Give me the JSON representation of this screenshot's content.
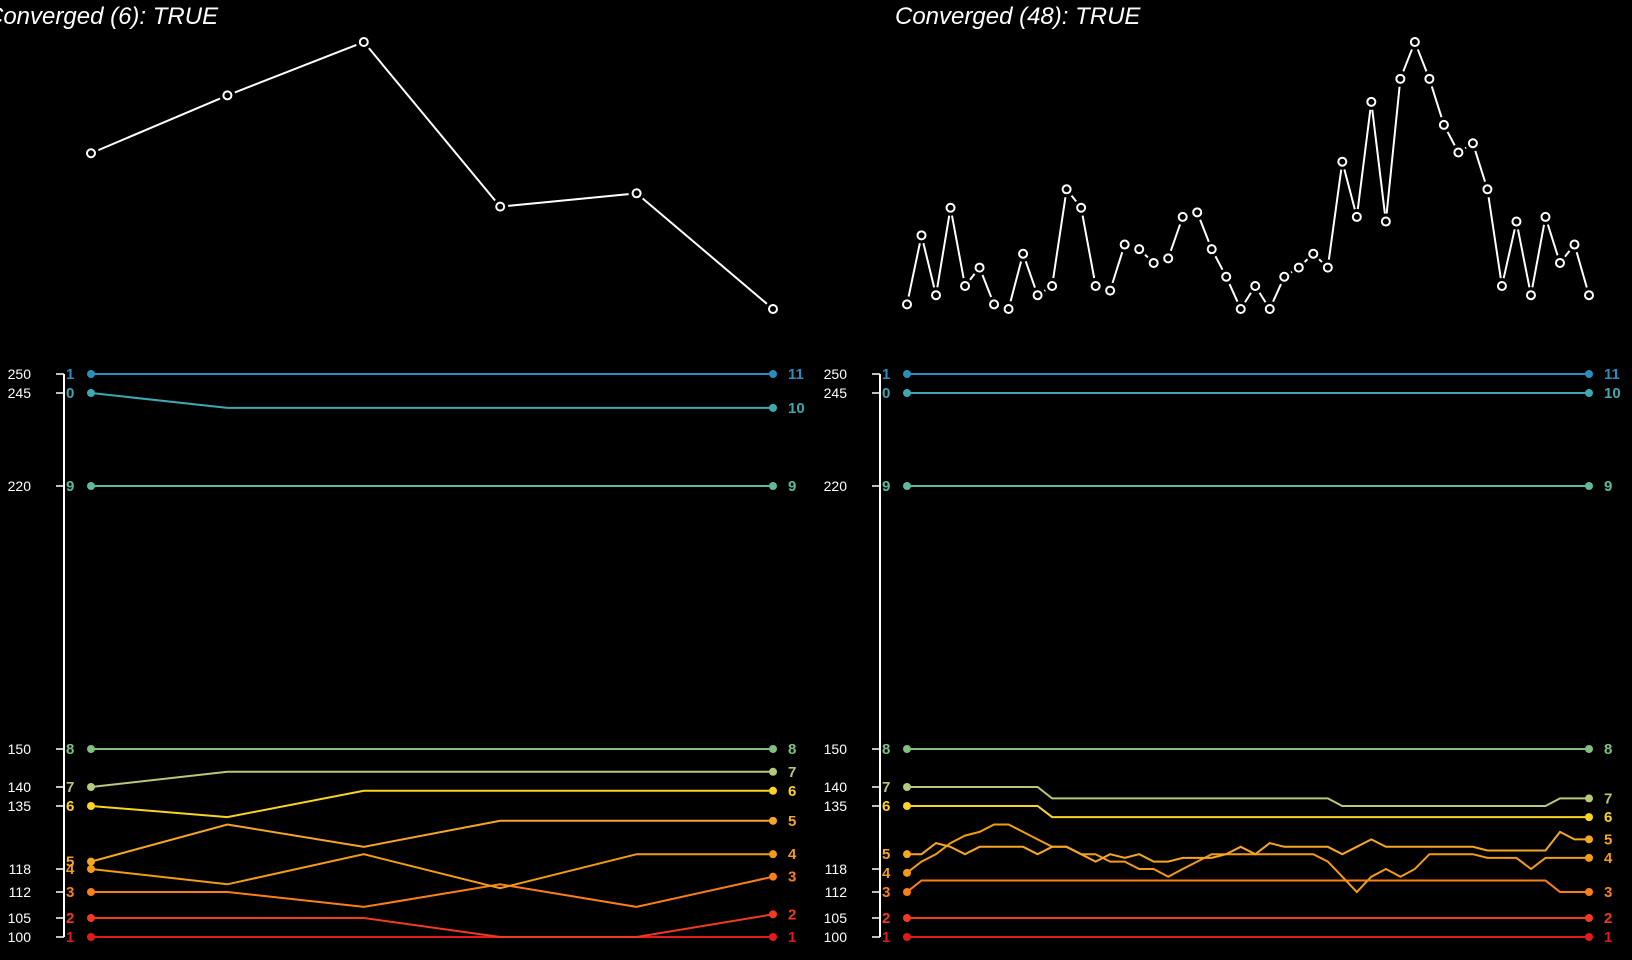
{
  "chart_data": [
    {
      "type": "line",
      "panel": "left",
      "title": "Converged (6): TRUE",
      "conv": [
        60,
        73,
        85,
        48,
        51,
        25
      ],
      "ytick_values": [
        100,
        105,
        112,
        118,
        135,
        140,
        150,
        220,
        245,
        250
      ],
      "ylim": [
        100,
        250
      ],
      "steps": 6,
      "series": [
        {
          "label_start": "1",
          "label_end": "1",
          "color": "#e31a1c",
          "values": [
            100,
            100,
            100,
            100,
            100,
            100
          ]
        },
        {
          "label_start": "2",
          "label_end": "2",
          "color": "#f03b20",
          "values": [
            105,
            105,
            105,
            100,
            100,
            106
          ]
        },
        {
          "label_start": "3",
          "label_end": "3",
          "color": "#fd7e14",
          "values": [
            112,
            112,
            108,
            114,
            108,
            116
          ]
        },
        {
          "label_start": "4",
          "label_end": "4",
          "color": "#f39c12",
          "values": [
            118,
            114,
            122,
            113,
            122,
            122
          ]
        },
        {
          "label_start": "5",
          "label_end": "5",
          "color": "#f5a623",
          "values": [
            120,
            130,
            124,
            131,
            131,
            131
          ]
        },
        {
          "label_start": "6",
          "label_end": "6",
          "color": "#f9d423",
          "values": [
            135,
            132,
            139,
            139,
            139,
            139
          ]
        },
        {
          "label_start": "7",
          "label_end": "7",
          "color": "#b5c97a",
          "values": [
            140,
            144,
            144,
            144,
            144,
            144
          ]
        },
        {
          "label_start": "8",
          "label_end": "8",
          "color": "#7fbf7f",
          "values": [
            150,
            150,
            150,
            150,
            150,
            150
          ]
        },
        {
          "label_start": "9",
          "label_end": "9",
          "color": "#5fb8a0",
          "values": [
            220,
            220,
            220,
            220,
            220,
            220
          ]
        },
        {
          "label_start": "0",
          "label_end": "10",
          "color": "#3fa7b0",
          "values": [
            245,
            241,
            241,
            241,
            241,
            241
          ]
        },
        {
          "label_start": "1",
          "label_end": "11",
          "color": "#2b8cbe",
          "values": [
            250,
            250,
            250,
            250,
            250,
            250
          ]
        }
      ]
    },
    {
      "type": "line",
      "panel": "right",
      "title": "Converged (48): TRUE",
      "conv": [
        30,
        45,
        32,
        51,
        34,
        38,
        30,
        29,
        41,
        32,
        34,
        55,
        51,
        34,
        33,
        43,
        42,
        39,
        40,
        49,
        50,
        42,
        36,
        29,
        34,
        29,
        36,
        38,
        41,
        38,
        61,
        49,
        74,
        48,
        79,
        87,
        79,
        69,
        63,
        65,
        55,
        34,
        48,
        32,
        49,
        39,
        43,
        32
      ],
      "ytick_values": [
        100,
        105,
        112,
        118,
        135,
        140,
        150,
        220,
        245,
        250
      ],
      "ylim": [
        100,
        250
      ],
      "steps": 48,
      "series": [
        {
          "label_start": "1",
          "label_end": "1",
          "color": "#e31a1c",
          "values": [
            100,
            100,
            100,
            100,
            100,
            100,
            100,
            100,
            100,
            100,
            100,
            100,
            100,
            100,
            100,
            100,
            100,
            100,
            100,
            100,
            100,
            100,
            100,
            100,
            100,
            100,
            100,
            100,
            100,
            100,
            100,
            100,
            100,
            100,
            100,
            100,
            100,
            100,
            100,
            100,
            100,
            100,
            100,
            100,
            100,
            100,
            100,
            100
          ]
        },
        {
          "label_start": "2",
          "label_end": "2",
          "color": "#f03b20",
          "values": [
            105,
            105,
            105,
            105,
            105,
            105,
            105,
            105,
            105,
            105,
            105,
            105,
            105,
            105,
            105,
            105,
            105,
            105,
            105,
            105,
            105,
            105,
            105,
            105,
            105,
            105,
            105,
            105,
            105,
            105,
            105,
            105,
            105,
            105,
            105,
            105,
            105,
            105,
            105,
            105,
            105,
            105,
            105,
            105,
            105,
            105,
            105,
            105
          ]
        },
        {
          "label_start": "3",
          "label_end": "3",
          "color": "#fd7e14",
          "values": [
            112,
            115,
            115,
            115,
            115,
            115,
            115,
            115,
            115,
            115,
            115,
            115,
            115,
            115,
            115,
            115,
            115,
            115,
            115,
            115,
            115,
            115,
            115,
            115,
            115,
            115,
            115,
            115,
            115,
            115,
            115,
            115,
            115,
            115,
            115,
            115,
            115,
            115,
            115,
            115,
            115,
            115,
            115,
            115,
            115,
            112,
            112,
            112
          ]
        },
        {
          "label_start": "4",
          "label_end": "4",
          "color": "#f39c12",
          "values": [
            117,
            120,
            122,
            125,
            127,
            128,
            130,
            130,
            128,
            126,
            124,
            124,
            122,
            122,
            120,
            120,
            118,
            118,
            116,
            118,
            120,
            122,
            122,
            122,
            122,
            122,
            122,
            122,
            122,
            120,
            116,
            112,
            116,
            118,
            116,
            118,
            122,
            122,
            122,
            122,
            121,
            121,
            121,
            118,
            121,
            121,
            121,
            121
          ]
        },
        {
          "label_start": "5",
          "label_end": "5",
          "color": "#f5a623",
          "values": [
            122,
            122,
            125,
            124,
            122,
            124,
            124,
            124,
            124,
            122,
            124,
            124,
            122,
            120,
            122,
            121,
            122,
            120,
            120,
            121,
            121,
            121,
            122,
            124,
            122,
            125,
            124,
            124,
            124,
            124,
            122,
            124,
            126,
            124,
            124,
            124,
            124,
            124,
            124,
            124,
            123,
            123,
            123,
            123,
            123,
            128,
            126,
            126
          ]
        },
        {
          "label_start": "6",
          "label_end": "6",
          "color": "#f9d423",
          "values": [
            135,
            135,
            135,
            135,
            135,
            135,
            135,
            135,
            135,
            135,
            132,
            132,
            132,
            132,
            132,
            132,
            132,
            132,
            132,
            132,
            132,
            132,
            132,
            132,
            132,
            132,
            132,
            132,
            132,
            132,
            132,
            132,
            132,
            132,
            132,
            132,
            132,
            132,
            132,
            132,
            132,
            132,
            132,
            132,
            132,
            132,
            132,
            132
          ]
        },
        {
          "label_start": "7",
          "label_end": "7",
          "color": "#b5c97a",
          "values": [
            140,
            140,
            140,
            140,
            140,
            140,
            140,
            140,
            140,
            140,
            137,
            137,
            137,
            137,
            137,
            137,
            137,
            137,
            137,
            137,
            137,
            137,
            137,
            137,
            137,
            137,
            137,
            137,
            137,
            137,
            135,
            135,
            135,
            135,
            135,
            135,
            135,
            135,
            135,
            135,
            135,
            135,
            135,
            135,
            135,
            137,
            137,
            137
          ]
        },
        {
          "label_start": "8",
          "label_end": "8",
          "color": "#7fbf7f",
          "values": [
            150,
            150,
            150,
            150,
            150,
            150,
            150,
            150,
            150,
            150,
            150,
            150,
            150,
            150,
            150,
            150,
            150,
            150,
            150,
            150,
            150,
            150,
            150,
            150,
            150,
            150,
            150,
            150,
            150,
            150,
            150,
            150,
            150,
            150,
            150,
            150,
            150,
            150,
            150,
            150,
            150,
            150,
            150,
            150,
            150,
            150,
            150,
            150
          ]
        },
        {
          "label_start": "9",
          "label_end": "9",
          "color": "#5fb8a0",
          "values": [
            220,
            220,
            220,
            220,
            220,
            220,
            220,
            220,
            220,
            220,
            220,
            220,
            220,
            220,
            220,
            220,
            220,
            220,
            220,
            220,
            220,
            220,
            220,
            220,
            220,
            220,
            220,
            220,
            220,
            220,
            220,
            220,
            220,
            220,
            220,
            220,
            220,
            220,
            220,
            220,
            220,
            220,
            220,
            220,
            220,
            220,
            220,
            220
          ]
        },
        {
          "label_start": "0",
          "label_end": "10",
          "color": "#3fa7b0",
          "values": [
            245,
            245,
            245,
            245,
            245,
            245,
            245,
            245,
            245,
            245,
            245,
            245,
            245,
            245,
            245,
            245,
            245,
            245,
            245,
            245,
            245,
            245,
            245,
            245,
            245,
            245,
            245,
            245,
            245,
            245,
            245,
            245,
            245,
            245,
            245,
            245,
            245,
            245,
            245,
            245,
            245,
            245,
            245,
            245,
            245,
            245,
            245,
            245
          ]
        },
        {
          "label_start": "1",
          "label_end": "11",
          "color": "#2b8cbe",
          "values": [
            250,
            250,
            250,
            250,
            250,
            250,
            250,
            250,
            250,
            250,
            250,
            250,
            250,
            250,
            250,
            250,
            250,
            250,
            250,
            250,
            250,
            250,
            250,
            250,
            250,
            250,
            250,
            250,
            250,
            250,
            250,
            250,
            250,
            250,
            250,
            250,
            250,
            250,
            250,
            250,
            250,
            250,
            250,
            250,
            250,
            250,
            250,
            250
          ]
        }
      ]
    }
  ]
}
